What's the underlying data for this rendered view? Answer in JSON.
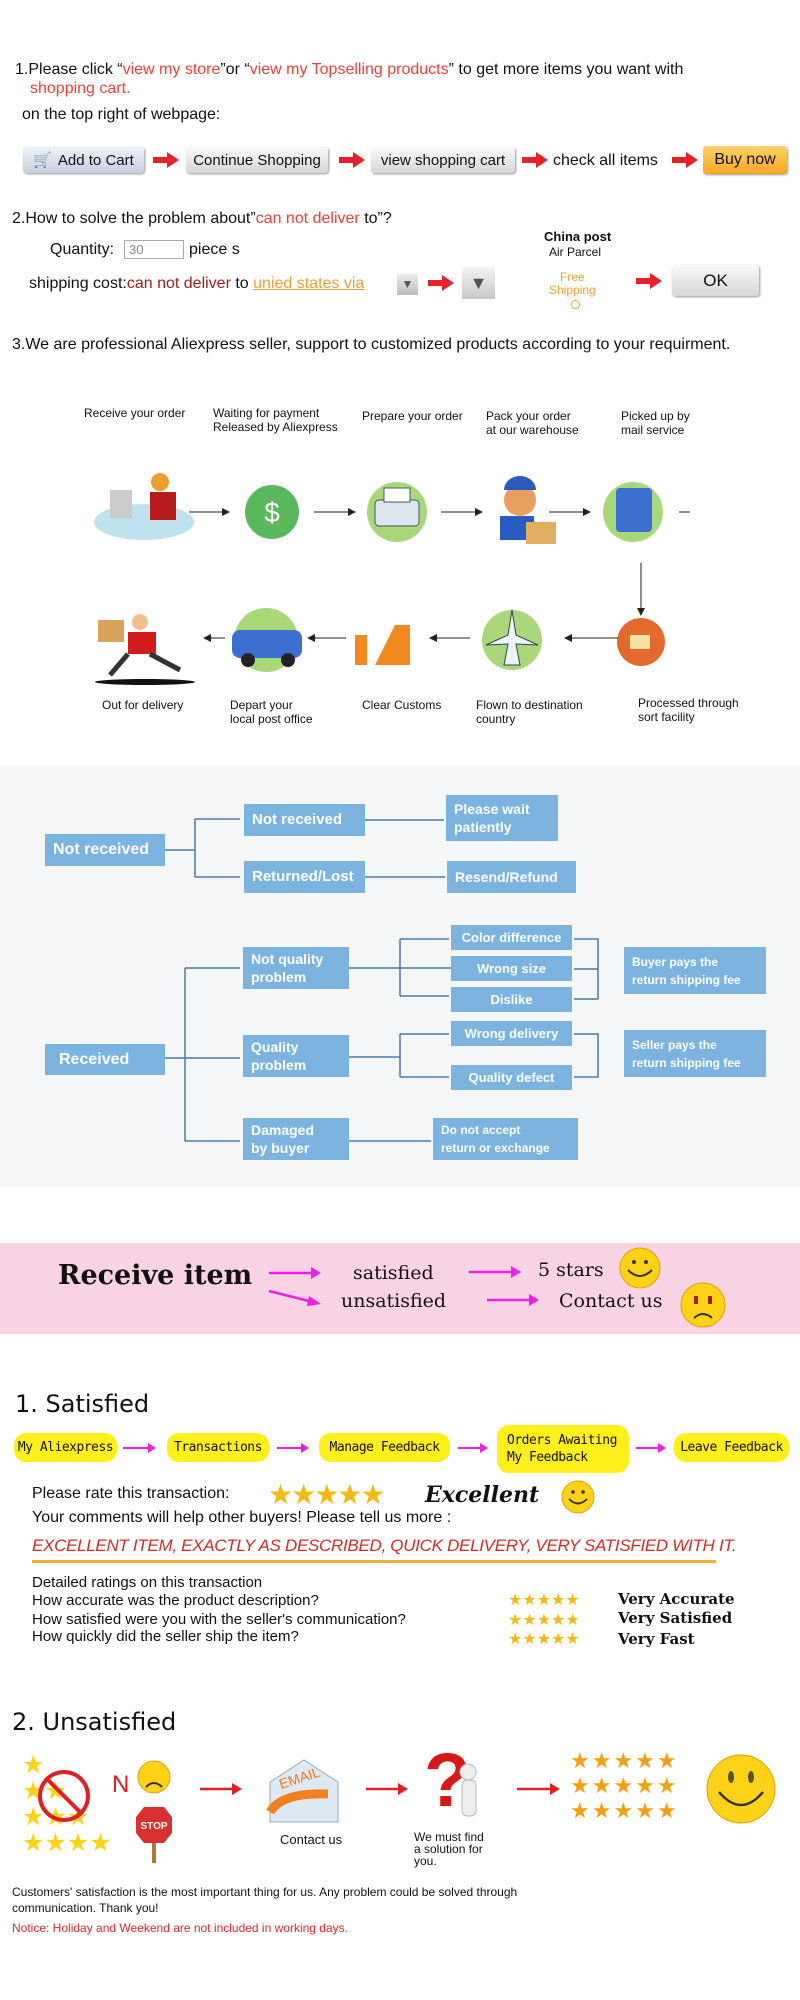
{
  "section1": {
    "prefix": "1.Please click “",
    "link1": "view my store",
    "mid": "”or “",
    "link2": "view my Topselling products",
    "suffix": "” to get more items you want with",
    "line2": "shopping cart.",
    "line3": "on the top right of webpage:",
    "steps": {
      "add_to_cart": "Add to Cart",
      "continue": "Continue Shopping",
      "view_cart": "view shopping cart",
      "check": "check all items",
      "buy": "Buy now"
    }
  },
  "section2": {
    "prefix": "2.How to solve the problem about”",
    "highlight": "can not deliver",
    "suffix": " to”?",
    "quantity_label": "Quantity:",
    "quantity_value": "30",
    "unit": "piece s",
    "shipping_label": "shipping cost:",
    "cannot": "can not deliver",
    "to": " to ",
    "dest": "unied states via",
    "carrier": "China post",
    "service": "Air Parcel",
    "free": "Free\nShipping",
    "ok": "OK"
  },
  "section3": {
    "text": "3.We are professional Aliexpress seller, support to customized products according to your requirment."
  },
  "process": {
    "row1": [
      "Receive your order",
      "Waiting for payment\nReleased by Aliexpress",
      "Prepare your order",
      "Pack your order\nat our warehouse",
      "Picked up by\nmail service"
    ],
    "row2": [
      "Out for delivery",
      "Depart your\nlocal post office",
      "Clear Customs",
      "Flown to destination\ncountry",
      "Processed through\nsort facility"
    ]
  },
  "flow": {
    "not_received_root": "Not received",
    "not_received": "Not received",
    "please_wait": "Please wait\npatiently",
    "returned_lost": "Returned/Lost",
    "resend_refund": "Resend/Refund",
    "received": "Received",
    "not_quality": "Not quality\nproblem",
    "quality": "Quality\nproblem",
    "damaged": "Damaged\nby buyer",
    "color_diff": "Color difference",
    "wrong_size": "Wrong size",
    "dislike": "Dislike",
    "wrong_delivery": "Wrong delivery",
    "quality_defect": "Quality defect",
    "buyer_pays": "Buyer pays the\nreturn shipping fee",
    "seller_pays": "Seller pays the\nreturn shipping fee",
    "do_not_accept": "Do not accept\nreturn or exchange",
    "colors": {
      "box": "#7db4df",
      "line": "#4a7aa6",
      "bg": "#f5f6f7"
    }
  },
  "banner": {
    "title": "Receive item",
    "satisfied": "satisfied",
    "unsatisfied": "unsatisfied",
    "five_stars": "5 stars",
    "contact": "Contact us",
    "bg": "#f8d3e4",
    "arrow": "#f020e0"
  },
  "satisfied": {
    "title": "1. Satisfied",
    "steps": [
      "My Aliexpress",
      "Transactions",
      "Manage Feedback",
      "Orders Awaiting\nMy Feedback",
      "Leave Feedback"
    ],
    "rate_label": "Please rate this transaction:",
    "rating": 5,
    "rating_text": "Excellent",
    "comments": "Your comments will help other buyers! Please tell us more :",
    "sample": "EXCELLENT ITEM, EXACTLY AS DESCRIBED, QUICK DELIVERY, VERY SATISFIED WITH IT.",
    "detail_title": "Detailed ratings on this transaction",
    "details": [
      {
        "q": "How accurate was the product description?",
        "a": "Very Accurate",
        "stars": 5
      },
      {
        "q": "How satisfied were you with the seller's communication?",
        "a": "Very Satisfied",
        "stars": 5
      },
      {
        "q": "How quickly did the seller ship the item?",
        "a": "Very Fast",
        "stars": 5
      }
    ]
  },
  "unsatisfied": {
    "title": "2. Unsatisfied",
    "no": "N",
    "stop": "STOP",
    "email": "EMAIL",
    "contact": "Contact us",
    "solution": "We must find\na solution for\nyou.",
    "footer": "Customers' satisfaction is the most important thing for us. Any problem could be solved through\ncommunication. Thank you!",
    "notice": "Notice: Holiday and Weekend are not included in working days."
  }
}
